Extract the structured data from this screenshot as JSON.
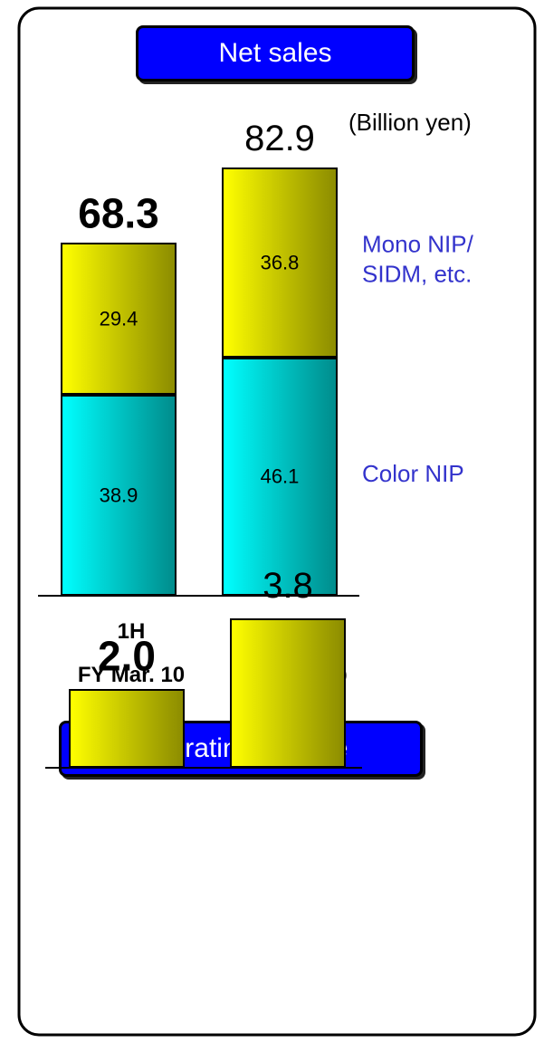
{
  "chart_data": [
    {
      "type": "stacked_bar",
      "title": "Net sales",
      "unit_label": "(Billion yen)",
      "categories": [
        "1H\nFY Mar. 10",
        "1H\nFY Mar. 09"
      ],
      "series": [
        {
          "name": "Color NIP",
          "color": "#00ffff",
          "values": [
            38.9,
            46.1
          ]
        },
        {
          "name": "Mono NIP/\nSIDM, etc.",
          "color": "#ffff00",
          "values": [
            29.4,
            36.8
          ]
        }
      ],
      "totals": [
        68.3,
        82.9
      ],
      "ylim": [
        0,
        100
      ]
    },
    {
      "type": "bar",
      "title": "Operating income",
      "values": [
        2.0,
        3.8
      ],
      "value_labels": [
        "2.0",
        "3.8"
      ],
      "color": "#ffff00",
      "ylim": [
        0,
        5
      ]
    }
  ]
}
